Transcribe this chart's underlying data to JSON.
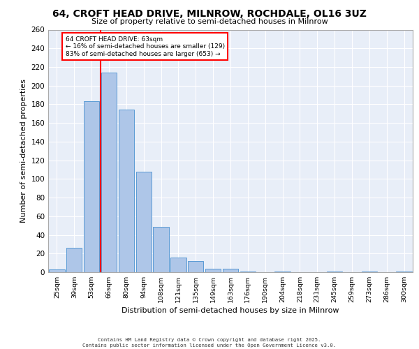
{
  "title": "64, CROFT HEAD DRIVE, MILNROW, ROCHDALE, OL16 3UZ",
  "subtitle": "Size of property relative to semi-detached houses in Milnrow",
  "xlabel": "Distribution of semi-detached houses by size in Milnrow",
  "ylabel": "Number of semi-detached properties",
  "categories": [
    "25sqm",
    "39sqm",
    "53sqm",
    "66sqm",
    "80sqm",
    "94sqm",
    "108sqm",
    "121sqm",
    "135sqm",
    "149sqm",
    "163sqm",
    "176sqm",
    "190sqm",
    "204sqm",
    "218sqm",
    "231sqm",
    "245sqm",
    "259sqm",
    "273sqm",
    "286sqm",
    "300sqm"
  ],
  "values": [
    3,
    26,
    183,
    214,
    174,
    108,
    49,
    16,
    12,
    4,
    4,
    1,
    0,
    1,
    0,
    0,
    1,
    0,
    1,
    0,
    1
  ],
  "bar_color": "#aec6e8",
  "bar_edge_color": "#5a9bd5",
  "red_line_index": 3,
  "subject_property": "64 CROFT HEAD DRIVE: 63sqm",
  "smaller_pct": "16%",
  "smaller_count": 129,
  "larger_pct": "83%",
  "larger_count": 653,
  "ylim": [
    0,
    260
  ],
  "yticks": [
    0,
    20,
    40,
    60,
    80,
    100,
    120,
    140,
    160,
    180,
    200,
    220,
    240,
    260
  ],
  "background_color": "#e8eef8",
  "grid_color": "#ffffff",
  "footer_line1": "Contains HM Land Registry data © Crown copyright and database right 2025.",
  "footer_line2": "Contains public sector information licensed under the Open Government Licence v3.0."
}
